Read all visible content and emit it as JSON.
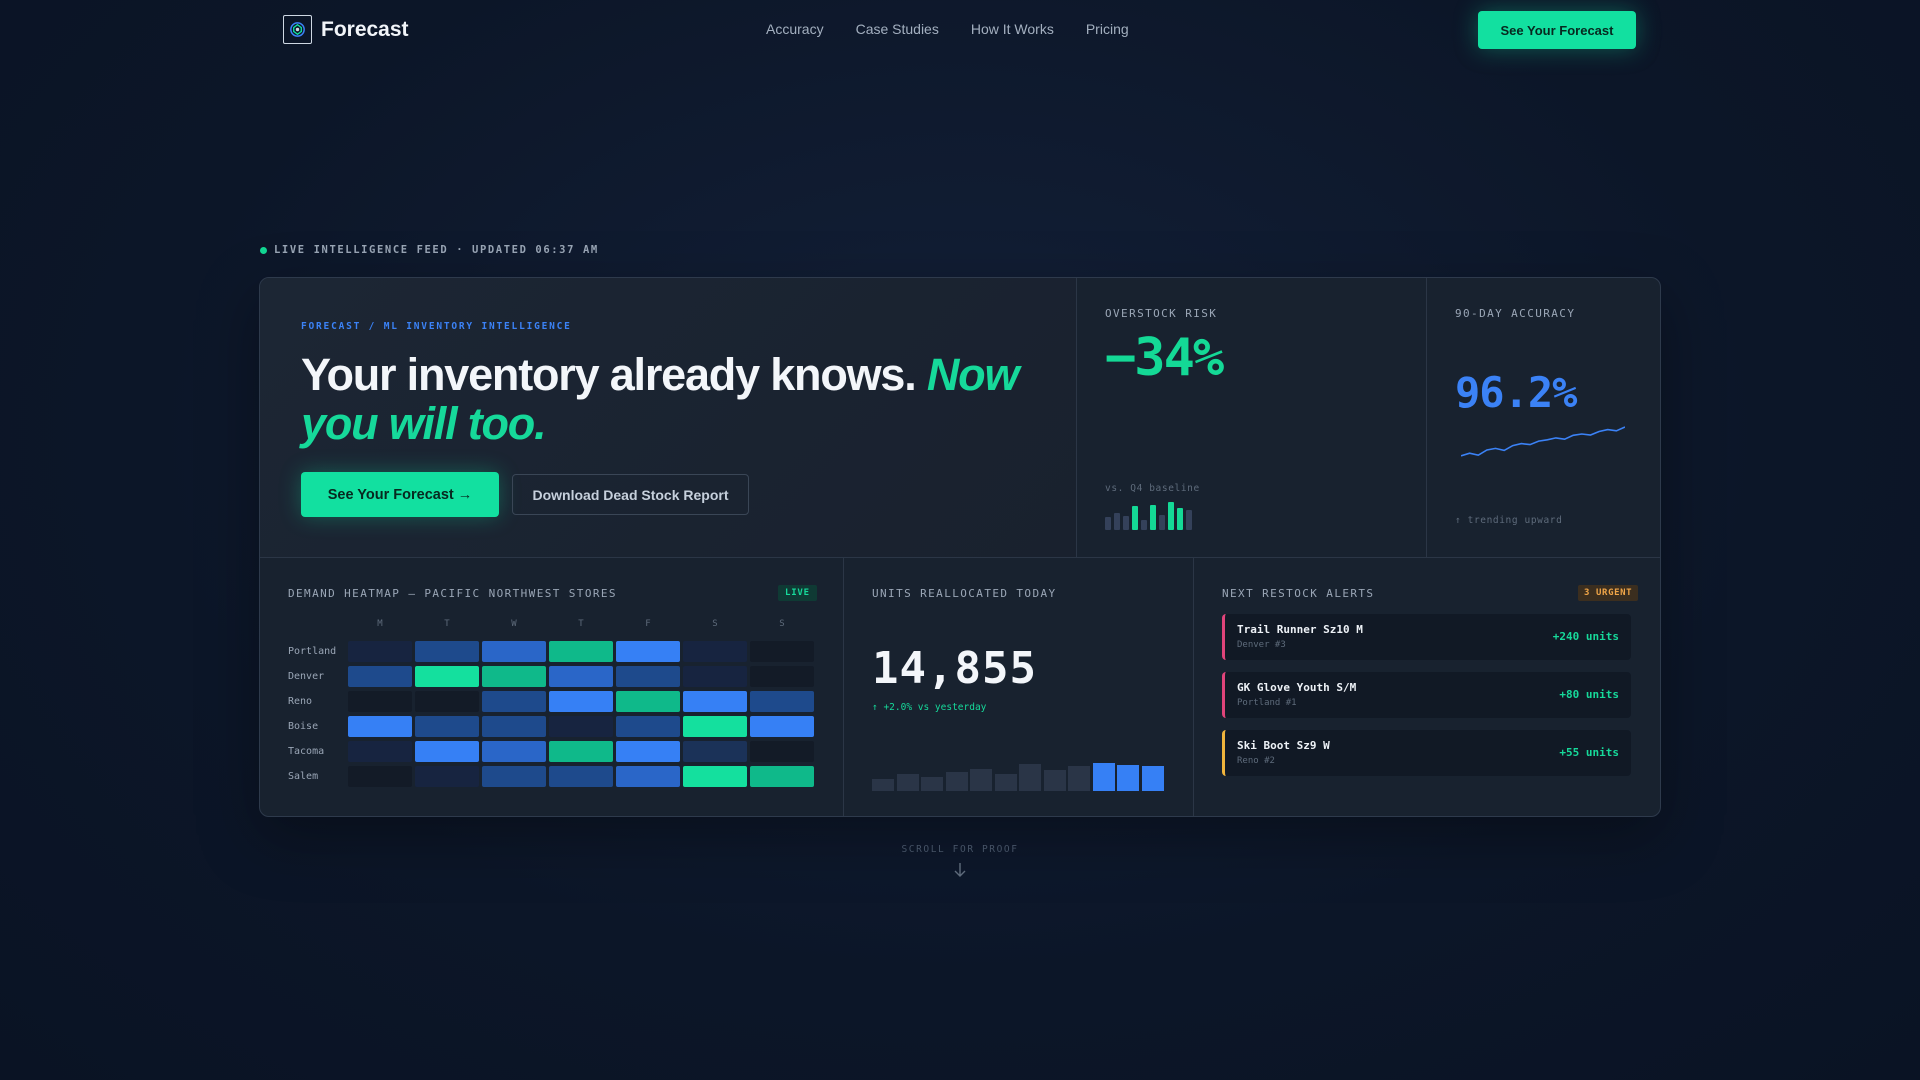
{
  "nav": {
    "brand": "Forecast",
    "links": [
      "Accuracy",
      "Case Studies",
      "How It Works",
      "Pricing"
    ],
    "cta": "See Your Forecast"
  },
  "feed": {
    "text": "LIVE INTELLIGENCE FEED · UPDATED 06:37 AM"
  },
  "hero": {
    "eyebrow": "FORECAST / ML INVENTORY INTELLIGENCE",
    "headline_plain": "Your inventory already knows.",
    "headline_accent": "Now you will too.",
    "primary_cta": "See Your Forecast →",
    "secondary_cta": "Download Dead Stock Report"
  },
  "overstock": {
    "label": "OVERSTOCK RISK",
    "value": "−34%",
    "note": "vs. Q4 baseline",
    "bars": [
      {
        "level": 0.45,
        "highlight": false
      },
      {
        "level": 0.6,
        "highlight": false
      },
      {
        "level": 0.5,
        "highlight": false
      },
      {
        "level": 0.85,
        "highlight": true
      },
      {
        "level": 0.35,
        "highlight": false
      },
      {
        "level": 0.9,
        "highlight": true
      },
      {
        "level": 0.55,
        "highlight": false
      },
      {
        "level": 1.0,
        "highlight": true
      },
      {
        "level": 0.8,
        "highlight": true
      },
      {
        "level": 0.7,
        "highlight": false
      }
    ]
  },
  "accuracy": {
    "label": "90-DAY ACCURACY",
    "value": "96.2%",
    "note": "↑ trending upward",
    "trend": [
      0.1,
      0.18,
      0.12,
      0.28,
      0.33,
      0.27,
      0.42,
      0.48,
      0.45,
      0.56,
      0.6,
      0.66,
      0.62,
      0.74,
      0.78,
      0.75,
      0.86,
      0.92,
      0.88,
      1.0
    ]
  },
  "heatmap": {
    "title": "DEMAND HEATMAP — PACIFIC NORTHWEST STORES",
    "badge": "LIVE",
    "days": [
      "M",
      "T",
      "W",
      "T",
      "F",
      "S",
      "S"
    ],
    "rows": [
      {
        "city": "Portland",
        "levels": [
          1,
          3,
          4,
          6,
          5,
          1,
          0
        ]
      },
      {
        "city": "Denver",
        "levels": [
          3,
          7,
          6,
          4,
          3,
          1,
          0
        ]
      },
      {
        "city": "Reno",
        "levels": [
          0,
          0,
          3,
          5,
          6,
          5,
          3
        ]
      },
      {
        "city": "Boise",
        "levels": [
          5,
          3,
          3,
          1,
          3,
          7,
          5
        ]
      },
      {
        "city": "Tacoma",
        "levels": [
          1,
          5,
          4,
          6,
          5,
          2,
          0
        ]
      },
      {
        "city": "Salem",
        "levels": [
          0,
          1,
          3,
          3,
          4,
          7,
          6
        ]
      }
    ],
    "palette": {
      "0": "#131b27",
      "1": "#172440",
      "2": "#1b3258",
      "3": "#1e4a8c",
      "4": "#2a66c8",
      "5": "#3680f5",
      "6": "#0fb98a",
      "7": "#14e09e"
    }
  },
  "units": {
    "label": "UNITS REALLOCATED TODAY",
    "value": "14,855",
    "delta": "↑ +2.0% vs yesterday",
    "bars": [
      {
        "level": 0.42,
        "highlight": false
      },
      {
        "level": 0.6,
        "highlight": false
      },
      {
        "level": 0.5,
        "highlight": false
      },
      {
        "level": 0.68,
        "highlight": false
      },
      {
        "level": 0.78,
        "highlight": false
      },
      {
        "level": 0.62,
        "highlight": false
      },
      {
        "level": 0.95,
        "highlight": false
      },
      {
        "level": 0.75,
        "highlight": false
      },
      {
        "level": 0.88,
        "highlight": false
      },
      {
        "level": 1.0,
        "highlight": true
      },
      {
        "level": 0.92,
        "highlight": true
      },
      {
        "level": 0.88,
        "highlight": true
      }
    ]
  },
  "alerts": {
    "title": "NEXT RESTOCK ALERTS",
    "badge": "3 URGENT",
    "items": [
      {
        "name": "Trail Runner Sz10 M",
        "store": "Denver #3",
        "value": "+240 units",
        "color": "#e0447a"
      },
      {
        "name": "GK Glove Youth S/M",
        "store": "Portland #1",
        "value": "+80 units",
        "color": "#e0447a"
      },
      {
        "name": "Ski Boot Sz9 W",
        "store": "Reno #2",
        "value": "+55 units",
        "color": "#f0b43c"
      }
    ]
  },
  "scroll": {
    "label": "SCROLL FOR PROOF"
  }
}
